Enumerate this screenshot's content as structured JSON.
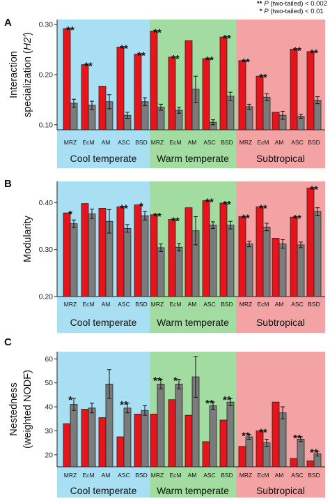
{
  "legend": {
    "double": {
      "stars": "**",
      "p": "P",
      "text": "(two-tailed) < 0.002"
    },
    "single": {
      "stars": "*",
      "p": "P",
      "text": "(two-tailed) < 0.01"
    }
  },
  "colors": {
    "observed": "#e8141c",
    "null_model": "#7b7b7b",
    "cool_bg": "#a9dff2",
    "warm_bg": "#a3dca0",
    "sub_bg": "#f4a3a5"
  },
  "regions": [
    "Cool temperate",
    "Warm temperate",
    "Subtropical"
  ],
  "chart_data": [
    {
      "panel": "A",
      "type": "bar",
      "ylabel_lines": [
        "Interaction",
        "specialization (H2')"
      ],
      "ylabel_parts": [
        {
          "line": 0,
          "text": "Interaction",
          "italic": false
        },
        {
          "line": 1,
          "text": "specialization (",
          "italic": false
        },
        {
          "line": 1,
          "text": "H2'",
          "italic": true
        },
        {
          "line": 1,
          "text": ")",
          "italic": false
        }
      ],
      "ylim": [
        0.09,
        0.31
      ],
      "yticks": [
        "0.10",
        "0.20",
        "0.30"
      ],
      "ytick_values": [
        0.1,
        0.2,
        0.3
      ],
      "categories": [
        "MRZ",
        "EcM",
        "AM",
        "ASC",
        "BSD",
        "MRZ",
        "EcM",
        "AM",
        "ASC",
        "BSD",
        "MRZ",
        "EcM",
        "AM",
        "ASC",
        "BSD"
      ],
      "region_of": [
        0,
        0,
        0,
        0,
        0,
        1,
        1,
        1,
        1,
        1,
        2,
        2,
        2,
        2,
        2
      ],
      "series": [
        {
          "role": "observed",
          "values": [
            0.292,
            0.22,
            0.177,
            0.255,
            0.241,
            0.287,
            0.235,
            0.268,
            0.232,
            0.275,
            0.228,
            0.197,
            0.125,
            0.251,
            0.246
          ]
        },
        {
          "role": "null",
          "values": [
            0.143,
            0.139,
            0.146,
            0.119,
            0.146,
            0.135,
            0.129,
            0.171,
            0.105,
            0.157,
            0.136,
            0.155,
            0.119,
            0.117,
            0.149
          ],
          "errors": [
            0.008,
            0.008,
            0.014,
            0.006,
            0.008,
            0.006,
            0.006,
            0.026,
            0.005,
            0.008,
            0.005,
            0.007,
            0.008,
            0.004,
            0.007
          ]
        }
      ],
      "significance": [
        "**",
        "**",
        "",
        "**",
        "**",
        "**",
        "**",
        "",
        "**",
        "**",
        "**",
        "**",
        "",
        "**",
        "**"
      ]
    },
    {
      "panel": "B",
      "type": "bar",
      "ylabel_lines": [
        "Modularity"
      ],
      "ylabel_parts": [
        {
          "line": 0,
          "text": "Modularity",
          "italic": false
        }
      ],
      "ylim": [
        0.2,
        0.445
      ],
      "yticks": [
        "0.20",
        "0.30",
        "0.40"
      ],
      "ytick_values": [
        0.2,
        0.3,
        0.4
      ],
      "categories": [
        "MRZ",
        "EcM",
        "AM",
        "ASC",
        "BSD",
        "MRZ",
        "EcM",
        "AM",
        "ASC",
        "BSD",
        "MRZ",
        "EcM",
        "AM",
        "ASC",
        "BSD"
      ],
      "region_of": [
        0,
        0,
        0,
        0,
        0,
        1,
        1,
        1,
        1,
        1,
        2,
        2,
        2,
        2,
        2
      ],
      "series": [
        {
          "role": "observed",
          "values": [
            0.378,
            0.398,
            0.388,
            0.391,
            0.395,
            0.374,
            0.364,
            0.389,
            0.404,
            0.399,
            0.37,
            0.391,
            0.324,
            0.369,
            0.431
          ]
        },
        {
          "role": "null",
          "values": [
            0.355,
            0.376,
            0.36,
            0.345,
            0.372,
            0.304,
            0.305,
            0.34,
            0.352,
            0.352,
            0.312,
            0.348,
            0.312,
            0.31,
            0.381
          ],
          "errors": [
            0.008,
            0.01,
            0.025,
            0.008,
            0.009,
            0.008,
            0.008,
            0.03,
            0.007,
            0.008,
            0.006,
            0.008,
            0.009,
            0.006,
            0.008
          ]
        }
      ],
      "significance": [
        "*",
        "",
        "",
        "**",
        "*",
        "**",
        "**",
        "",
        "**",
        "**",
        "**",
        "**",
        "",
        "**",
        "**"
      ]
    },
    {
      "panel": "C",
      "type": "bar",
      "ylabel_lines": [
        "Nestedness",
        "(weighted NODF)"
      ],
      "ylabel_parts": [
        {
          "line": 0,
          "text": "Nestedness",
          "italic": false
        },
        {
          "line": 1,
          "text": "(weighted NODF)",
          "italic": false
        }
      ],
      "ylim": [
        15,
        63
      ],
      "yticks": [
        "20",
        "30",
        "40",
        "50",
        "60"
      ],
      "ytick_values": [
        20,
        30,
        40,
        50,
        60
      ],
      "categories": [
        "MRZ",
        "EcM",
        "AM",
        "ASC",
        "BSD",
        "MRZ",
        "EcM",
        "AM",
        "ASC",
        "BSD",
        "MRZ",
        "EcM",
        "AM",
        "ASC",
        "BSD"
      ],
      "region_of": [
        0,
        0,
        0,
        0,
        0,
        1,
        1,
        1,
        1,
        1,
        2,
        2,
        2,
        2,
        2
      ],
      "series": [
        {
          "role": "observed",
          "values": [
            33.0,
            39.0,
            35.5,
            27.5,
            37.0,
            37.0,
            43.0,
            36.5,
            25.5,
            34.5,
            23.5,
            30.0,
            42.0,
            18.5,
            17.5
          ]
        },
        {
          "role": "null",
          "values": [
            41.0,
            39.5,
            49.5,
            39.5,
            38.5,
            49.5,
            49.5,
            52.5,
            40.5,
            42.0,
            27.5,
            25.0,
            37.5,
            26.5,
            20.5
          ],
          "errors": [
            2.5,
            2.0,
            6.0,
            2.0,
            2.0,
            2.0,
            2.0,
            8.5,
            1.5,
            1.5,
            1.0,
            1.5,
            2.5,
            1.0,
            1.0
          ]
        }
      ],
      "significance": [
        "*",
        "",
        "",
        "**",
        "",
        "**",
        "*",
        "",
        "**",
        "**",
        "**",
        "**",
        "",
        "**",
        "**"
      ]
    }
  ]
}
